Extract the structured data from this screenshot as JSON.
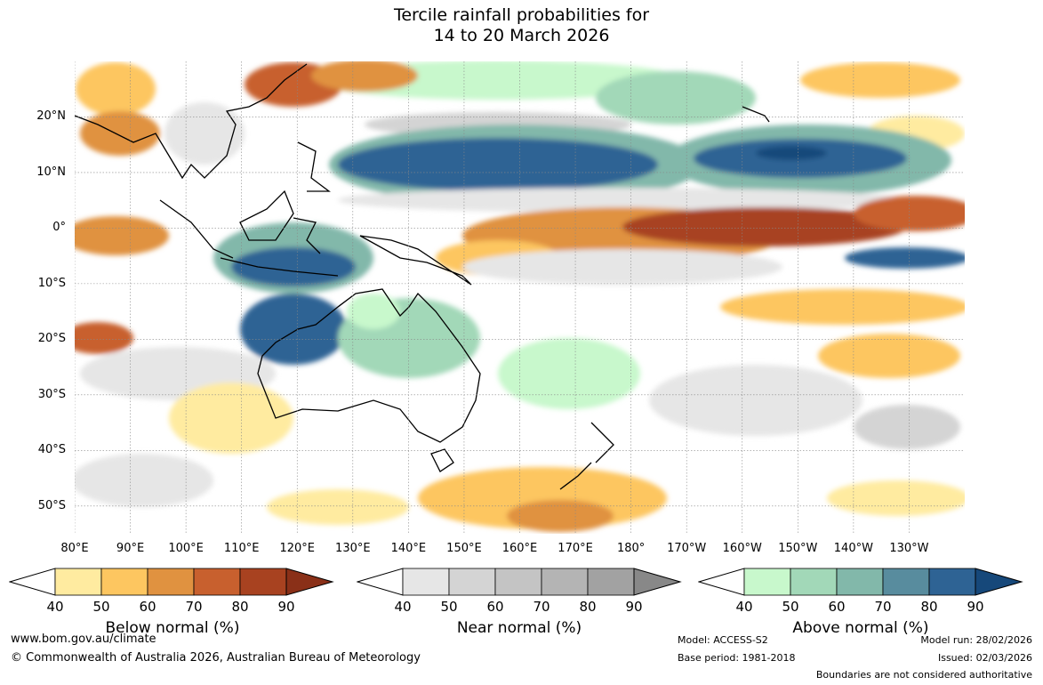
{
  "title": {
    "line1": "Tercile rainfall probabilities for",
    "line2": "14 to 20 March 2026"
  },
  "map": {
    "type": "tercile-probability-map",
    "lat_labels": [
      "20°N",
      "10°N",
      "0°",
      "10°S",
      "20°S",
      "30°S",
      "40°S",
      "50°S"
    ],
    "lon_labels": [
      "80°E",
      "90°E",
      "100°E",
      "110°E",
      "120°E",
      "130°E",
      "140°E",
      "150°E",
      "160°E",
      "170°E",
      "180°",
      "170°W",
      "160°W",
      "150°W",
      "140°W",
      "130°W"
    ],
    "extent": {
      "lon_min": 80,
      "lon_max": 240,
      "lat_min": -55,
      "lat_max": 30
    }
  },
  "colorbars": [
    {
      "name": "below",
      "title": "Below normal (%)",
      "ticks": [
        "40",
        "50",
        "60",
        "70",
        "80",
        "90"
      ],
      "colors": [
        "#ffeba0",
        "#fdc660",
        "#e09240",
        "#c8602e",
        "#a84220",
        "#8a3018"
      ]
    },
    {
      "name": "near",
      "title": "Near normal (%)",
      "ticks": [
        "40",
        "50",
        "60",
        "70",
        "80",
        "90"
      ],
      "colors": [
        "#e6e6e6",
        "#d4d4d4",
        "#c4c4c4",
        "#b4b4b4",
        "#a2a2a2",
        "#888888"
      ]
    },
    {
      "name": "above",
      "title": "Above normal (%)",
      "ticks": [
        "40",
        "50",
        "60",
        "70",
        "80",
        "90"
      ],
      "colors": [
        "#c8f8cc",
        "#a2d8b8",
        "#82b8aa",
        "#588c9e",
        "#2e6394",
        "#16487a"
      ]
    }
  ],
  "footer": {
    "website": "www.bom.gov.au/climate",
    "copyright": "© Commonwealth of Australia 2026, Australian Bureau of Meteorology",
    "model": "Model: ACCESS-S2",
    "base_period": "Base period: 1981-2018",
    "model_run": "Model run: 28/02/2026",
    "issued": "Issued: 02/03/2026",
    "disclaimer": "Boundaries are not considered authoritative"
  }
}
